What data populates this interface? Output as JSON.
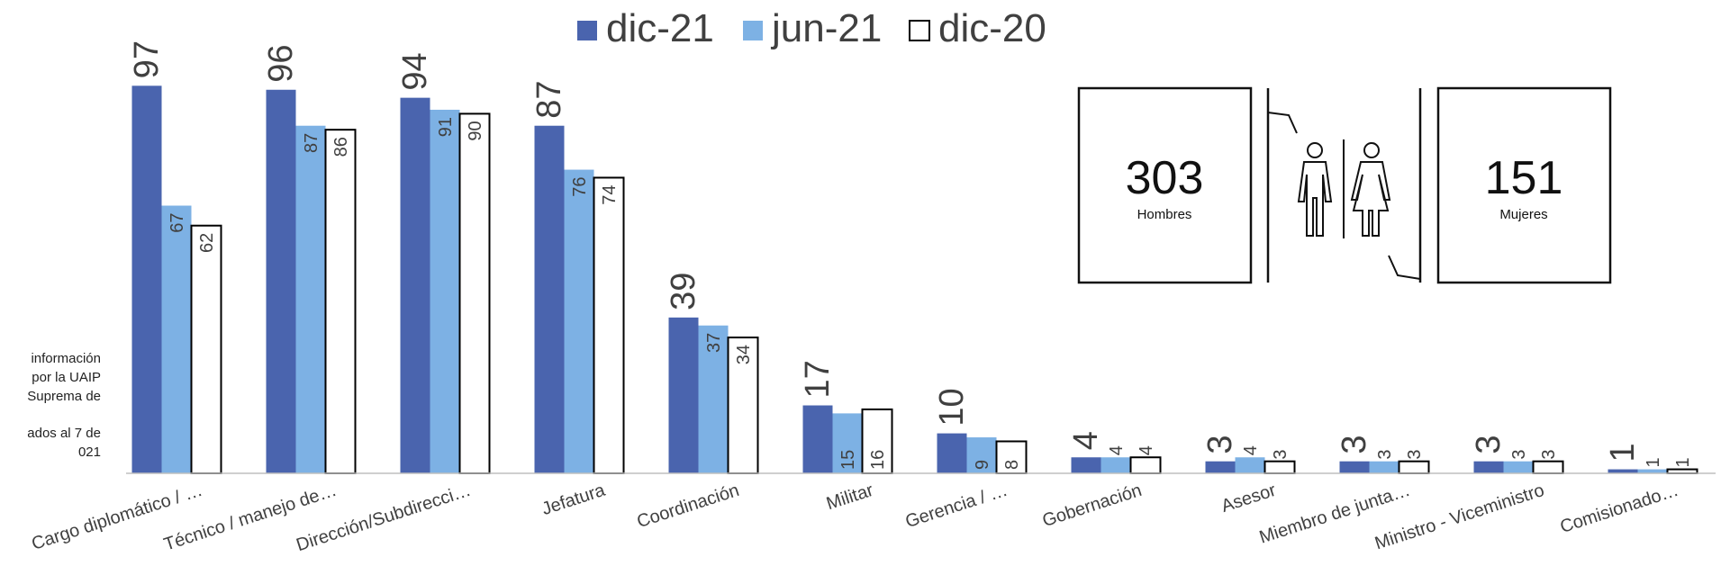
{
  "side_note": {
    "line1": "información",
    "line2": "por la UAIP",
    "line3": "Suprema de",
    "line4": "ados al 7 de",
    "line5": "021"
  },
  "infographic": {
    "men_count": "303",
    "men_label": "Hombres",
    "women_count": "151",
    "women_label": "Mujeres"
  },
  "chart_data": {
    "type": "bar",
    "categories": [
      "Cargo diplomático / …",
      "Técnico / manejo de…",
      "Dirección/Subdirecci…",
      "Jefatura",
      "Coordinación",
      "Militar",
      "Gerencia / …",
      "Gobernación",
      "Asesor",
      "Miembro de junta…",
      "Ministro - Viceministro",
      "Comisionado…"
    ],
    "series": [
      {
        "name": "dic-21",
        "color": "#4A64AE",
        "values": [
          97,
          96,
          94,
          87,
          39,
          17,
          10,
          4,
          3,
          3,
          3,
          1
        ]
      },
      {
        "name": "jun-21",
        "color": "#7DB1E4",
        "values": [
          67,
          87,
          91,
          76,
          37,
          15,
          9,
          4,
          4,
          3,
          3,
          1
        ]
      },
      {
        "name": "dic-20",
        "color": "#FFFFFF",
        "values": [
          62,
          86,
          90,
          74,
          34,
          16,
          8,
          4,
          3,
          3,
          3,
          1
        ]
      }
    ],
    "ylim": [
      0,
      100
    ],
    "legend_position": "top-center",
    "grid": false
  }
}
